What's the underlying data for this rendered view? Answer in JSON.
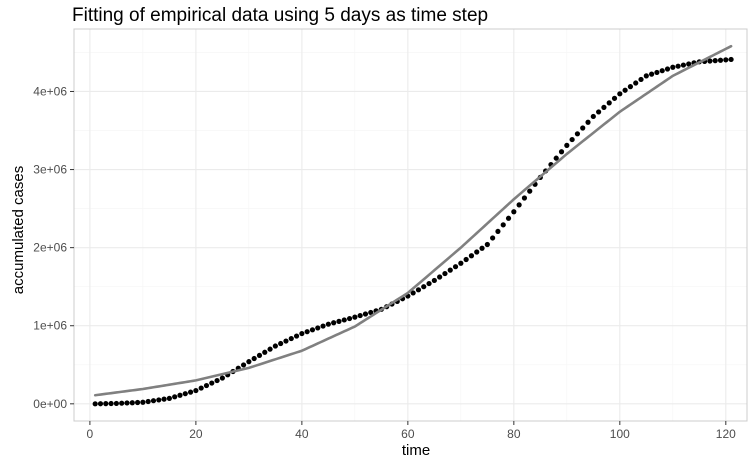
{
  "chart_data": {
    "type": "scatter",
    "title": "Fitting of empirical data using 5 days as time step",
    "xlabel": "time",
    "ylabel": "accumulated cases",
    "xlim": [
      -3,
      124
    ],
    "ylim": [
      -220000,
      4800000
    ],
    "x_ticks": [
      0,
      20,
      40,
      60,
      80,
      100,
      120
    ],
    "x_tick_labels": [
      "0",
      "20",
      "40",
      "60",
      "80",
      "100",
      "120"
    ],
    "x_minor_ticks": [
      10,
      30,
      50,
      70,
      90,
      110
    ],
    "y_ticks": [
      0,
      1000000,
      2000000,
      3000000,
      4000000
    ],
    "y_tick_labels": [
      "0e+00",
      "1e+06",
      "2e+06",
      "3e+06",
      "4e+06"
    ],
    "y_minor_ticks": [
      500000,
      1500000,
      2500000,
      3500000,
      4500000
    ],
    "grid": true,
    "legend": "none",
    "colors": {
      "points": "#000000",
      "fit_line": "#808080",
      "grid_major": "#ebebeb",
      "grid_minor": "#f5f5f5",
      "panel_border": "#cccccc"
    },
    "series": [
      {
        "kind": "points",
        "x": [
          1,
          5,
          10,
          15,
          20,
          25,
          30,
          35,
          40,
          45,
          50,
          55,
          60,
          65,
          70,
          75,
          80,
          85,
          90,
          95,
          100,
          105,
          110,
          115,
          121
        ],
        "y": [
          0,
          5000,
          20000,
          70000,
          170000,
          330000,
          540000,
          740000,
          900000,
          1020000,
          1110000,
          1210000,
          1380000,
          1580000,
          1800000,
          2040000,
          2460000,
          2900000,
          3310000,
          3680000,
          3970000,
          4200000,
          4310000,
          4380000,
          4410000
        ]
      },
      {
        "kind": "line",
        "x": [
          1,
          10,
          20,
          30,
          40,
          50,
          60,
          70,
          80,
          90,
          100,
          110,
          121
        ],
        "y": [
          110000,
          190000,
          300000,
          460000,
          680000,
          990000,
          1420000,
          2000000,
          2620000,
          3200000,
          3740000,
          4200000,
          4580000
        ]
      }
    ]
  }
}
